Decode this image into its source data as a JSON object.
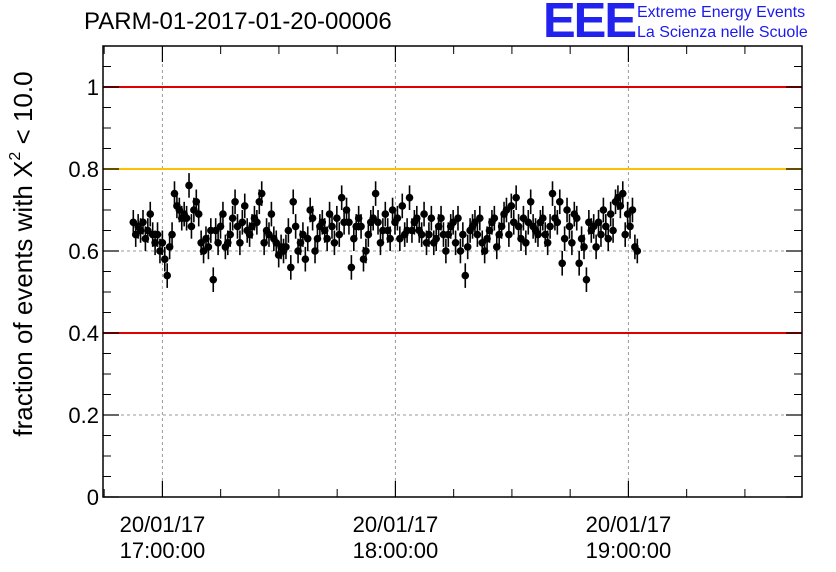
{
  "title": "PARM-01-2017-01-20-00006",
  "logo": {
    "mark": "EEE",
    "line1": "Extreme Energy Events",
    "line2": "La Scienza nelle Scuole"
  },
  "chart_data": {
    "type": "scatter",
    "title": "PARM-01-2017-01-20-00006",
    "ylabel_prefix": "fraction of events with X",
    "ylabel_sup": "2",
    "ylabel_suffix": " < 10.0",
    "xlabel": "",
    "ylim": [
      0,
      1.1
    ],
    "xlim_minutes": [
      16.9,
      18.59
    ],
    "grid": true,
    "yticks": [
      {
        "value": 0,
        "label": "0"
      },
      {
        "value": 0.2,
        "label": "0.2"
      },
      {
        "value": 0.4,
        "label": "0.4"
      },
      {
        "value": 0.6,
        "label": "0.6"
      },
      {
        "value": 0.8,
        "label": "0.8"
      },
      {
        "value": 1,
        "label": "1"
      }
    ],
    "xticks": [
      {
        "hour": 17,
        "date": "20/01/17",
        "time": "17:00:00"
      },
      {
        "hour": 18,
        "date": "20/01/17",
        "time": "18:00:00"
      },
      {
        "hour": 19,
        "date": "20/01/17",
        "time": "19:00:00"
      }
    ],
    "reference_lines": [
      {
        "y": 1.0,
        "color": "#e00000"
      },
      {
        "y": 0.8,
        "color": "#ffc000"
      },
      {
        "y": 0.4,
        "color": "#e00000"
      }
    ],
    "point_color": "#000000",
    "error": 0.03,
    "series_start_hour": 16.875,
    "series_step_hours": 0.0104,
    "y": [
      0.67,
      0.64,
      0.66,
      0.65,
      0.67,
      0.63,
      0.65,
      0.69,
      0.64,
      0.62,
      0.64,
      0.6,
      0.62,
      0.58,
      0.54,
      0.61,
      0.64,
      0.74,
      0.71,
      0.7,
      0.68,
      0.69,
      0.68,
      0.76,
      0.66,
      0.7,
      0.72,
      0.69,
      0.62,
      0.6,
      0.63,
      0.61,
      0.65,
      0.53,
      0.65,
      0.62,
      0.66,
      0.69,
      0.61,
      0.62,
      0.64,
      0.68,
      0.72,
      0.66,
      0.62,
      0.67,
      0.71,
      0.65,
      0.64,
      0.66,
      0.68,
      0.67,
      0.72,
      0.74,
      0.62,
      0.65,
      0.64,
      0.69,
      0.63,
      0.62,
      0.59,
      0.61,
      0.6,
      0.61,
      0.65,
      0.56,
      0.72,
      0.66,
      0.6,
      0.62,
      0.64,
      0.58,
      0.63,
      0.7,
      0.68,
      0.6,
      0.63,
      0.66,
      0.67,
      0.65,
      0.63,
      0.69,
      0.66,
      0.62,
      0.68,
      0.64,
      0.73,
      0.67,
      0.7,
      0.67,
      0.56,
      0.63,
      0.66,
      0.68,
      0.66,
      0.58,
      0.6,
      0.64,
      0.67,
      0.68,
      0.74,
      0.67,
      0.62,
      0.65,
      0.69,
      0.65,
      0.63,
      0.7,
      0.67,
      0.68,
      0.63,
      0.71,
      0.64,
      0.65,
      0.73,
      0.65,
      0.67,
      0.68,
      0.65,
      0.64,
      0.69,
      0.62,
      0.64,
      0.68,
      0.62,
      0.63,
      0.66,
      0.68,
      0.64,
      0.6,
      0.64,
      0.66,
      0.67,
      0.62,
      0.68,
      0.6,
      0.64,
      0.54,
      0.61,
      0.65,
      0.66,
      0.67,
      0.64,
      0.68,
      0.62,
      0.6,
      0.63,
      0.65,
      0.67,
      0.68,
      0.61,
      0.64,
      0.66,
      0.69,
      0.7,
      0.64,
      0.71,
      0.67,
      0.73,
      0.66,
      0.63,
      0.68,
      0.62,
      0.67,
      0.72,
      0.66,
      0.65,
      0.64,
      0.67,
      0.68,
      0.64,
      0.62,
      0.66,
      0.74,
      0.68,
      0.67,
      0.72,
      0.57,
      0.63,
      0.7,
      0.66,
      0.62,
      0.69,
      0.68,
      0.57,
      0.63,
      0.61,
      0.53,
      0.67,
      0.65,
      0.66,
      0.61,
      0.67,
      0.64,
      0.7,
      0.66,
      0.63,
      0.69,
      0.65,
      0.72,
      0.73,
      0.71,
      0.74,
      0.64,
      0.69,
      0.66,
      0.7,
      0.61,
      0.6
    ]
  }
}
